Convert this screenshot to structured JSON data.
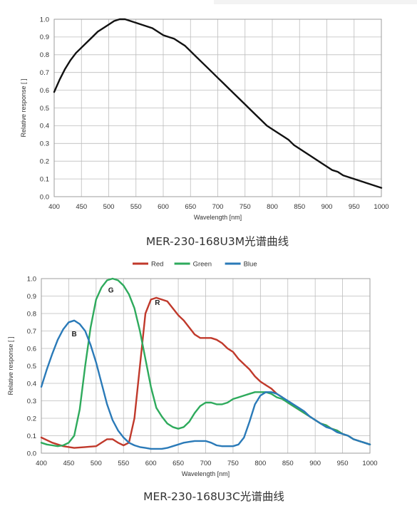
{
  "chart_data": [
    {
      "type": "line",
      "caption": "MER-230-168U3M光谱曲线",
      "xlabel": "Wavelength [nm]",
      "ylabel": "Relative response [ ]",
      "xlim": [
        400,
        1000
      ],
      "ylim": [
        0,
        1.0
      ],
      "xticks": [
        "400",
        "450",
        "500",
        "550",
        "600",
        "650",
        "700",
        "750",
        "800",
        "850",
        "900",
        "950",
        "1000"
      ],
      "yticks": [
        "0.0",
        "0.1",
        "0.2",
        "0.3",
        "0.4",
        "0.5",
        "0.6",
        "0.7",
        "0.8",
        "0.9",
        "1.0"
      ],
      "grid": true,
      "series": [
        {
          "color": "#111111",
          "points": [
            [
              400,
              0.59
            ],
            [
              410,
              0.66
            ],
            [
              420,
              0.72
            ],
            [
              430,
              0.77
            ],
            [
              440,
              0.81
            ],
            [
              450,
              0.84
            ],
            [
              460,
              0.87
            ],
            [
              470,
              0.9
            ],
            [
              480,
              0.93
            ],
            [
              490,
              0.95
            ],
            [
              500,
              0.97
            ],
            [
              510,
              0.99
            ],
            [
              520,
              1.0
            ],
            [
              530,
              1.0
            ],
            [
              540,
              0.99
            ],
            [
              550,
              0.98
            ],
            [
              560,
              0.97
            ],
            [
              570,
              0.96
            ],
            [
              580,
              0.95
            ],
            [
              590,
              0.93
            ],
            [
              600,
              0.91
            ],
            [
              610,
              0.9
            ],
            [
              620,
              0.89
            ],
            [
              630,
              0.87
            ],
            [
              640,
              0.85
            ],
            [
              650,
              0.82
            ],
            [
              660,
              0.79
            ],
            [
              670,
              0.76
            ],
            [
              680,
              0.73
            ],
            [
              690,
              0.7
            ],
            [
              700,
              0.67
            ],
            [
              710,
              0.64
            ],
            [
              720,
              0.61
            ],
            [
              730,
              0.58
            ],
            [
              740,
              0.55
            ],
            [
              750,
              0.52
            ],
            [
              760,
              0.49
            ],
            [
              770,
              0.46
            ],
            [
              780,
              0.43
            ],
            [
              790,
              0.4
            ],
            [
              800,
              0.38
            ],
            [
              810,
              0.36
            ],
            [
              820,
              0.34
            ],
            [
              830,
              0.32
            ],
            [
              840,
              0.29
            ],
            [
              850,
              0.27
            ],
            [
              860,
              0.25
            ],
            [
              870,
              0.23
            ],
            [
              880,
              0.21
            ],
            [
              890,
              0.19
            ],
            [
              900,
              0.17
            ],
            [
              910,
              0.15
            ],
            [
              920,
              0.14
            ],
            [
              930,
              0.12
            ],
            [
              940,
              0.11
            ],
            [
              950,
              0.1
            ],
            [
              960,
              0.09
            ],
            [
              970,
              0.08
            ],
            [
              980,
              0.07
            ],
            [
              990,
              0.06
            ],
            [
              1000,
              0.05
            ]
          ]
        }
      ]
    },
    {
      "type": "line",
      "caption": "MER-230-168U3C光谱曲线",
      "xlabel": "Wavelength [nm]",
      "ylabel": "Relative response [ ]",
      "xlim": [
        400,
        1000
      ],
      "ylim": [
        0,
        1.0
      ],
      "xticks": [
        "400",
        "450",
        "500",
        "550",
        "600",
        "650",
        "700",
        "750",
        "800",
        "850",
        "900",
        "950",
        "1000"
      ],
      "yticks": [
        "0.0",
        "0.1",
        "0.2",
        "0.3",
        "0.4",
        "0.5",
        "0.6",
        "0.7",
        "0.8",
        "0.9",
        "1.0"
      ],
      "grid": true,
      "legend_position": "top",
      "series": [
        {
          "name": "Red",
          "color": "#c0392b",
          "annotation": "R",
          "points": [
            [
              400,
              0.09
            ],
            [
              420,
              0.06
            ],
            [
              440,
              0.04
            ],
            [
              460,
              0.03
            ],
            [
              480,
              0.035
            ],
            [
              500,
              0.04
            ],
            [
              510,
              0.06
            ],
            [
              520,
              0.08
            ],
            [
              530,
              0.08
            ],
            [
              540,
              0.06
            ],
            [
              550,
              0.045
            ],
            [
              560,
              0.06
            ],
            [
              570,
              0.2
            ],
            [
              580,
              0.5
            ],
            [
              590,
              0.8
            ],
            [
              600,
              0.88
            ],
            [
              610,
              0.89
            ],
            [
              620,
              0.88
            ],
            [
              630,
              0.87
            ],
            [
              640,
              0.83
            ],
            [
              650,
              0.79
            ],
            [
              660,
              0.76
            ],
            [
              670,
              0.72
            ],
            [
              680,
              0.68
            ],
            [
              690,
              0.66
            ],
            [
              700,
              0.66
            ],
            [
              710,
              0.66
            ],
            [
              720,
              0.65
            ],
            [
              730,
              0.63
            ],
            [
              740,
              0.6
            ],
            [
              750,
              0.58
            ],
            [
              760,
              0.54
            ],
            [
              770,
              0.51
            ],
            [
              780,
              0.48
            ],
            [
              790,
              0.44
            ],
            [
              800,
              0.41
            ],
            [
              810,
              0.39
            ],
            [
              820,
              0.37
            ],
            [
              830,
              0.34
            ],
            [
              840,
              0.32
            ],
            [
              850,
              0.29
            ],
            [
              860,
              0.27
            ],
            [
              870,
              0.25
            ],
            [
              880,
              0.23
            ],
            [
              890,
              0.21
            ],
            [
              900,
              0.19
            ],
            [
              910,
              0.17
            ],
            [
              920,
              0.16
            ],
            [
              930,
              0.14
            ],
            [
              940,
              0.13
            ],
            [
              950,
              0.11
            ],
            [
              960,
              0.1
            ],
            [
              970,
              0.08
            ],
            [
              980,
              0.07
            ],
            [
              990,
              0.06
            ],
            [
              1000,
              0.05
            ]
          ]
        },
        {
          "name": "Green",
          "color": "#2eaa5c",
          "annotation": "G",
          "points": [
            [
              400,
              0.06
            ],
            [
              410,
              0.05
            ],
            [
              420,
              0.045
            ],
            [
              430,
              0.04
            ],
            [
              440,
              0.045
            ],
            [
              450,
              0.06
            ],
            [
              460,
              0.1
            ],
            [
              470,
              0.25
            ],
            [
              480,
              0.5
            ],
            [
              490,
              0.72
            ],
            [
              500,
              0.88
            ],
            [
              510,
              0.95
            ],
            [
              520,
              0.99
            ],
            [
              530,
              1.0
            ],
            [
              540,
              0.99
            ],
            [
              550,
              0.96
            ],
            [
              560,
              0.91
            ],
            [
              570,
              0.83
            ],
            [
              580,
              0.7
            ],
            [
              590,
              0.54
            ],
            [
              600,
              0.38
            ],
            [
              610,
              0.26
            ],
            [
              620,
              0.21
            ],
            [
              630,
              0.17
            ],
            [
              640,
              0.15
            ],
            [
              650,
              0.14
            ],
            [
              660,
              0.15
            ],
            [
              670,
              0.18
            ],
            [
              680,
              0.23
            ],
            [
              690,
              0.27
            ],
            [
              700,
              0.29
            ],
            [
              710,
              0.29
            ],
            [
              720,
              0.28
            ],
            [
              730,
              0.28
            ],
            [
              740,
              0.29
            ],
            [
              750,
              0.31
            ],
            [
              760,
              0.32
            ],
            [
              770,
              0.33
            ],
            [
              780,
              0.34
            ],
            [
              790,
              0.35
            ],
            [
              800,
              0.35
            ],
            [
              810,
              0.35
            ],
            [
              820,
              0.34
            ],
            [
              830,
              0.32
            ],
            [
              840,
              0.31
            ],
            [
              850,
              0.29
            ],
            [
              860,
              0.27
            ],
            [
              870,
              0.25
            ],
            [
              880,
              0.23
            ],
            [
              890,
              0.21
            ],
            [
              900,
              0.19
            ],
            [
              910,
              0.17
            ],
            [
              920,
              0.16
            ],
            [
              930,
              0.14
            ],
            [
              940,
              0.13
            ],
            [
              950,
              0.11
            ],
            [
              960,
              0.1
            ],
            [
              970,
              0.08
            ],
            [
              980,
              0.07
            ],
            [
              990,
              0.06
            ],
            [
              1000,
              0.05
            ]
          ]
        },
        {
          "name": "Blue",
          "color": "#2a7ab8",
          "annotation": "B",
          "points": [
            [
              400,
              0.38
            ],
            [
              410,
              0.48
            ],
            [
              420,
              0.57
            ],
            [
              430,
              0.65
            ],
            [
              440,
              0.71
            ],
            [
              450,
              0.75
            ],
            [
              460,
              0.76
            ],
            [
              470,
              0.74
            ],
            [
              480,
              0.7
            ],
            [
              490,
              0.62
            ],
            [
              500,
              0.52
            ],
            [
              510,
              0.4
            ],
            [
              520,
              0.28
            ],
            [
              530,
              0.19
            ],
            [
              540,
              0.13
            ],
            [
              550,
              0.09
            ],
            [
              560,
              0.06
            ],
            [
              570,
              0.045
            ],
            [
              580,
              0.035
            ],
            [
              590,
              0.03
            ],
            [
              600,
              0.025
            ],
            [
              610,
              0.025
            ],
            [
              620,
              0.025
            ],
            [
              630,
              0.03
            ],
            [
              640,
              0.04
            ],
            [
              650,
              0.05
            ],
            [
              660,
              0.06
            ],
            [
              670,
              0.065
            ],
            [
              680,
              0.07
            ],
            [
              690,
              0.07
            ],
            [
              700,
              0.07
            ],
            [
              710,
              0.06
            ],
            [
              720,
              0.045
            ],
            [
              730,
              0.04
            ],
            [
              740,
              0.04
            ],
            [
              750,
              0.04
            ],
            [
              760,
              0.05
            ],
            [
              770,
              0.09
            ],
            [
              780,
              0.18
            ],
            [
              790,
              0.28
            ],
            [
              800,
              0.33
            ],
            [
              810,
              0.35
            ],
            [
              820,
              0.35
            ],
            [
              830,
              0.34
            ],
            [
              840,
              0.32
            ],
            [
              850,
              0.3
            ],
            [
              860,
              0.28
            ],
            [
              870,
              0.26
            ],
            [
              880,
              0.24
            ],
            [
              890,
              0.21
            ],
            [
              900,
              0.19
            ],
            [
              910,
              0.17
            ],
            [
              920,
              0.15
            ],
            [
              930,
              0.14
            ],
            [
              940,
              0.12
            ],
            [
              950,
              0.11
            ],
            [
              960,
              0.1
            ],
            [
              970,
              0.08
            ],
            [
              980,
              0.07
            ],
            [
              990,
              0.06
            ],
            [
              1000,
              0.05
            ]
          ]
        }
      ]
    }
  ]
}
